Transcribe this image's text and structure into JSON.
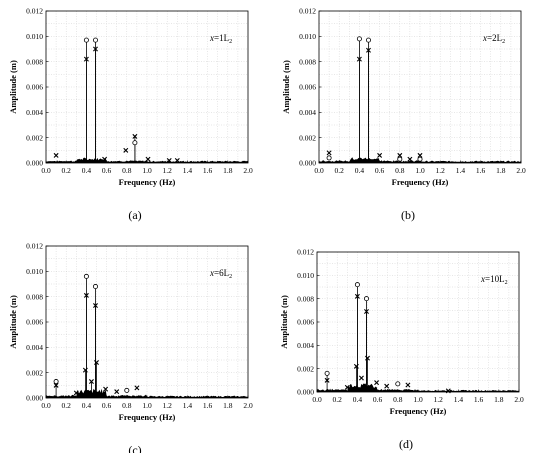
{
  "chart_data": [
    {
      "type": "line",
      "label": "(a)",
      "annotation": {
        "italic": "x",
        "text": "=1L",
        "sub": "2"
      },
      "xlabel": "Frequency (Hz)",
      "ylabel": "Amplitude (m)",
      "xlim": [
        0.0,
        2.0
      ],
      "ylim": [
        0.0,
        0.012
      ],
      "xticks": [
        "0.0",
        "0.2",
        "0.4",
        "0.6",
        "0.8",
        "1.0",
        "1.2",
        "1.4",
        "1.6",
        "1.8",
        "2.0"
      ],
      "yticks": [
        "0.000",
        "0.002",
        "0.004",
        "0.006",
        "0.008",
        "0.010",
        "0.012"
      ],
      "grid": true,
      "series": [
        {
          "marker": "circle",
          "x": [
            0.4,
            0.49,
            0.88
          ],
          "y": [
            0.0097,
            0.0097,
            0.0016
          ]
        },
        {
          "marker": "cross",
          "x": [
            0.1,
            0.4,
            0.49,
            0.58,
            0.79,
            0.88,
            1.01,
            1.22,
            1.3
          ],
          "y": [
            0.0006,
            0.0082,
            0.009,
            0.0003,
            0.001,
            0.0021,
            0.0003,
            0.0002,
            0.0002
          ]
        }
      ]
    },
    {
      "type": "line",
      "label": "(b)",
      "annotation": {
        "italic": "x",
        "text": "=2L",
        "sub": "2"
      },
      "xlabel": "Frequency (Hz)",
      "ylabel": "Amplitude (m)",
      "xlim": [
        0.0,
        2.0
      ],
      "ylim": [
        0.0,
        0.012
      ],
      "xticks": [
        "0.0",
        "0.2",
        "0.4",
        "0.6",
        "0.8",
        "1.0",
        "1.2",
        "1.4",
        "1.6",
        "1.8",
        "2.0"
      ],
      "yticks": [
        "0.000",
        "0.002",
        "0.004",
        "0.006",
        "0.008",
        "0.010",
        "0.012"
      ],
      "grid": true,
      "series": [
        {
          "marker": "circle",
          "x": [
            0.1,
            0.4,
            0.49,
            0.8,
            1.0
          ],
          "y": [
            0.0004,
            0.0098,
            0.0097,
            0.0003,
            0.0003
          ]
        },
        {
          "marker": "cross",
          "x": [
            0.1,
            0.4,
            0.49,
            0.6,
            0.8,
            0.9,
            1.0
          ],
          "y": [
            0.0008,
            0.0082,
            0.0089,
            0.0006,
            0.0006,
            0.0003,
            0.0006
          ]
        }
      ]
    },
    {
      "type": "line",
      "label": "(c)",
      "annotation": {
        "italic": "x",
        "text": "=6L",
        "sub": "2"
      },
      "xlabel": "Frequency (Hz)",
      "ylabel": "Amplitude (m)",
      "xlim": [
        0.0,
        2.0
      ],
      "ylim": [
        0.0,
        0.012
      ],
      "xticks": [
        "0.0",
        "0.2",
        "0.4",
        "0.6",
        "0.8",
        "1.0",
        "1.2",
        "1.4",
        "1.6",
        "1.8",
        "2.0"
      ],
      "yticks": [
        "0.000",
        "0.002",
        "0.004",
        "0.006",
        "0.008",
        "0.010",
        "0.012"
      ],
      "grid": true,
      "series": [
        {
          "marker": "circle",
          "x": [
            0.1,
            0.4,
            0.49,
            0.8
          ],
          "y": [
            0.0013,
            0.0096,
            0.0088,
            0.0006
          ]
        },
        {
          "marker": "cross",
          "x": [
            0.1,
            0.3,
            0.39,
            0.4,
            0.45,
            0.49,
            0.5,
            0.59,
            0.7,
            0.9
          ],
          "y": [
            0.001,
            0.0004,
            0.0022,
            0.0081,
            0.0013,
            0.0073,
            0.0028,
            0.0007,
            0.0005,
            0.0008
          ]
        }
      ]
    },
    {
      "type": "line",
      "label": "(d)",
      "annotation": {
        "italic": "x",
        "text": "=10L",
        "sub": "2"
      },
      "xlabel": "Frequency (Hz)",
      "ylabel": "Amplitude (m)",
      "xlim": [
        0.0,
        2.0
      ],
      "ylim": [
        0.0,
        0.012
      ],
      "xticks": [
        "0.0",
        "0.2",
        "0.4",
        "0.6",
        "0.8",
        "1.0",
        "1.2",
        "1.4",
        "1.6",
        "1.8",
        "2.0"
      ],
      "yticks": [
        "0.000",
        "0.002",
        "0.004",
        "0.006",
        "0.008",
        "0.010",
        "0.012"
      ],
      "grid": true,
      "series": [
        {
          "marker": "circle",
          "x": [
            0.1,
            0.4,
            0.49,
            0.8
          ],
          "y": [
            0.0016,
            0.0092,
            0.008,
            0.0007
          ]
        },
        {
          "marker": "cross",
          "x": [
            0.1,
            0.3,
            0.39,
            0.4,
            0.44,
            0.49,
            0.5,
            0.59,
            0.69,
            0.9,
            1.3
          ],
          "y": [
            0.001,
            0.0004,
            0.0022,
            0.0082,
            0.0012,
            0.0069,
            0.0029,
            0.0008,
            0.0005,
            0.0006,
            0.0001
          ]
        }
      ]
    }
  ]
}
